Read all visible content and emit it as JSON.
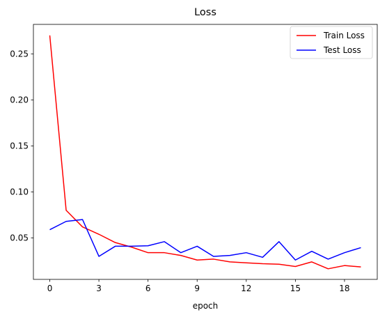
{
  "chart_data": {
    "type": "line",
    "title": "Loss",
    "xlabel": "epoch",
    "ylabel": "",
    "xlim": [
      -1,
      20
    ],
    "ylim": [
      0.005,
      0.282
    ],
    "xticks": [
      0,
      3,
      6,
      9,
      12,
      15,
      18
    ],
    "yticks": [
      0.05,
      0.1,
      0.15,
      0.2,
      0.25
    ],
    "ytick_labels": [
      "0.05",
      "0.10",
      "0.15",
      "0.20",
      "0.25"
    ],
    "grid": false,
    "legend_position": "top-right",
    "x": [
      0,
      1,
      2,
      3,
      4,
      5,
      6,
      7,
      8,
      9,
      10,
      11,
      12,
      13,
      14,
      15,
      16,
      17,
      18,
      19
    ],
    "series": [
      {
        "name": "Train Loss",
        "color": "#ff0000",
        "values": [
          0.27,
          0.08,
          0.062,
          0.054,
          0.045,
          0.04,
          0.034,
          0.034,
          0.031,
          0.026,
          0.027,
          0.024,
          0.023,
          0.022,
          0.0215,
          0.019,
          0.024,
          0.0165,
          0.02,
          0.0185
        ]
      },
      {
        "name": "Test Loss",
        "color": "#0000ff",
        "values": [
          0.059,
          0.068,
          0.07,
          0.03,
          0.041,
          0.041,
          0.0415,
          0.046,
          0.034,
          0.041,
          0.03,
          0.031,
          0.034,
          0.029,
          0.046,
          0.026,
          0.0355,
          0.027,
          0.034,
          0.0395
        ]
      }
    ]
  }
}
